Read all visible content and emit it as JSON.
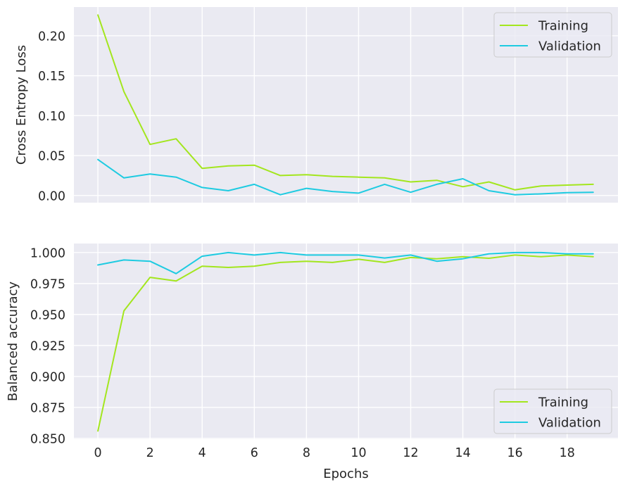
{
  "chart_data": [
    {
      "type": "line",
      "panel": "top",
      "title": "",
      "xlabel": "",
      "ylabel": "Cross Entropy Loss",
      "x": [
        0,
        1,
        2,
        3,
        4,
        5,
        6,
        7,
        8,
        9,
        10,
        11,
        12,
        13,
        14,
        15,
        16,
        17,
        18,
        19
      ],
      "xticks": [
        0,
        2,
        4,
        6,
        8,
        10,
        12,
        14,
        16,
        18
      ],
      "xtick_labels_visible": false,
      "yticks": [
        0.0,
        0.05,
        0.1,
        0.15,
        0.2
      ],
      "ytick_labels": [
        "0.00",
        "0.05",
        "0.10",
        "0.15",
        "0.20"
      ],
      "ylim": [
        -0.009,
        0.236
      ],
      "xlim": [
        -0.92,
        19.95
      ],
      "grid": true,
      "legend_position": "upper right",
      "series": [
        {
          "name": "Training",
          "color": "#a3e61e",
          "values": [
            0.226,
            0.13,
            0.064,
            0.071,
            0.034,
            0.037,
            0.038,
            0.025,
            0.026,
            0.024,
            0.023,
            0.022,
            0.017,
            0.019,
            0.011,
            0.017,
            0.007,
            0.012,
            0.013,
            0.014
          ]
        },
        {
          "name": "Validation",
          "color": "#1ecbe1",
          "values": [
            0.045,
            0.022,
            0.027,
            0.023,
            0.01,
            0.006,
            0.014,
            0.001,
            0.009,
            0.005,
            0.003,
            0.014,
            0.004,
            0.014,
            0.021,
            0.006,
            0.001,
            0.002,
            0.0035,
            0.004
          ]
        }
      ]
    },
    {
      "type": "line",
      "panel": "bottom",
      "title": "",
      "xlabel": "Epochs",
      "ylabel": "Balanced accuracy",
      "x": [
        0,
        1,
        2,
        3,
        4,
        5,
        6,
        7,
        8,
        9,
        10,
        11,
        12,
        13,
        14,
        15,
        16,
        17,
        18,
        19
      ],
      "xticks": [
        0,
        2,
        4,
        6,
        8,
        10,
        12,
        14,
        16,
        18
      ],
      "xtick_labels": [
        "0",
        "2",
        "4",
        "6",
        "8",
        "10",
        "12",
        "14",
        "16",
        "18"
      ],
      "yticks": [
        0.85,
        0.875,
        0.9,
        0.925,
        0.95,
        0.975,
        1.0
      ],
      "ytick_labels": [
        "0.850",
        "0.875",
        "0.900",
        "0.925",
        "0.950",
        "0.975",
        "1.000"
      ],
      "ylim": [
        0.8494,
        1.0073
      ],
      "xlim": [
        -0.92,
        19.95
      ],
      "grid": true,
      "legend_position": "lower right",
      "series": [
        {
          "name": "Training",
          "color": "#a3e61e",
          "values": [
            0.856,
            0.953,
            0.98,
            0.977,
            0.989,
            0.988,
            0.989,
            0.992,
            0.993,
            0.992,
            0.9946,
            0.992,
            0.996,
            0.995,
            0.9966,
            0.9954,
            0.998,
            0.9966,
            0.998,
            0.9966
          ]
        },
        {
          "name": "Validation",
          "color": "#1ecbe1",
          "values": [
            0.99,
            0.994,
            0.993,
            0.983,
            0.997,
            1.0,
            0.998,
            1.0,
            0.998,
            0.998,
            0.998,
            0.9956,
            0.998,
            0.993,
            0.995,
            0.999,
            1.0,
            1.0,
            0.999,
            0.999
          ]
        }
      ]
    }
  ],
  "style": {
    "axes_bg": "#eaeaf2",
    "grid_color": "#ffffff",
    "text_color": "#262626",
    "legend_edge": "#cccccc"
  }
}
